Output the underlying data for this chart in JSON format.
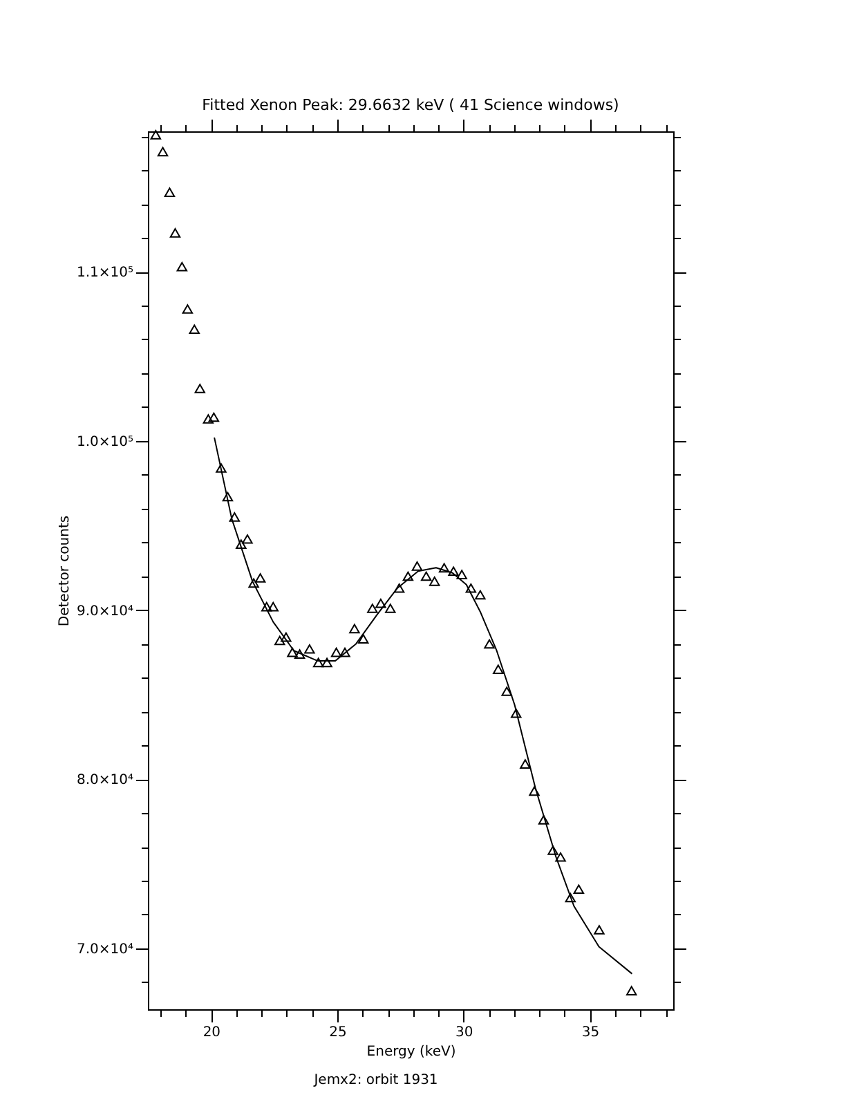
{
  "chart_data": {
    "type": "scatter",
    "title": "Fitted Xenon Peak:       29.6632 keV (      41 Science windows)",
    "xlabel": "Energy (keV)",
    "ylabel": "Detector counts",
    "annotations": [
      "Jemx2: orbit 1931"
    ],
    "grid": false,
    "xlim": [
      17.5,
      38.3
    ],
    "ylim": [
      66400,
      118300
    ],
    "xticks": [
      {
        "value": 18,
        "label": null
      },
      {
        "value": 19,
        "label": null
      },
      20,
      {
        "value": 21,
        "label": null
      },
      {
        "value": 22,
        "label": null
      },
      {
        "value": 23,
        "label": null
      },
      {
        "value": 24,
        "label": null
      },
      25,
      {
        "value": 26,
        "label": null
      },
      {
        "value": 27,
        "label": null
      },
      {
        "value": 28,
        "label": null
      },
      {
        "value": 29,
        "label": null
      },
      30,
      {
        "value": 31,
        "label": null
      },
      {
        "value": 32,
        "label": null
      },
      {
        "value": 33,
        "label": null
      },
      {
        "value": 34,
        "label": null
      },
      35,
      {
        "value": 36,
        "label": null
      },
      {
        "value": 37,
        "label": null
      },
      {
        "value": 38,
        "label": null
      }
    ],
    "yticks": [
      {
        "value": 68000,
        "label": null
      },
      {
        "value": 70000,
        "label": "7.0×10⁴"
      },
      {
        "value": 72000,
        "label": null
      },
      {
        "value": 74000,
        "label": null
      },
      {
        "value": 76000,
        "label": null
      },
      {
        "value": 78000,
        "label": null
      },
      {
        "value": 80000,
        "label": "8.0×10⁴"
      },
      {
        "value": 82000,
        "label": null
      },
      {
        "value": 84000,
        "label": null
      },
      {
        "value": 86000,
        "label": null
      },
      {
        "value": 88000,
        "label": null
      },
      {
        "value": 90000,
        "label": "9.0×10⁴"
      },
      {
        "value": 92000,
        "label": null
      },
      {
        "value": 94000,
        "label": null
      },
      {
        "value": 96000,
        "label": null
      },
      {
        "value": 98000,
        "label": null
      },
      {
        "value": 100000,
        "label": "1.0×10⁵"
      },
      {
        "value": 102000,
        "label": null
      },
      {
        "value": 104000,
        "label": null
      },
      {
        "value": 106000,
        "label": null
      },
      {
        "value": 108000,
        "label": null
      },
      {
        "value": 110000,
        "label": "1.1×10⁵"
      },
      {
        "value": 112000,
        "label": null
      },
      {
        "value": 114000,
        "label": null
      },
      {
        "value": 116000,
        "label": null
      },
      {
        "value": 118000,
        "label": null
      }
    ],
    "series": [
      {
        "marker": "triangle",
        "color": "#000000",
        "x": [
          17.81,
          18.09,
          18.36,
          18.58,
          18.85,
          19.07,
          19.34,
          19.56,
          19.89,
          20.11,
          20.4,
          20.66,
          20.93,
          21.19,
          21.44,
          21.69,
          21.95,
          22.2,
          22.46,
          22.72,
          22.97,
          23.22,
          23.51,
          23.9,
          24.25,
          24.59,
          24.96,
          25.3,
          25.68,
          26.03,
          26.39,
          26.72,
          27.1,
          27.45,
          27.8,
          28.16,
          28.52,
          28.85,
          29.23,
          29.6,
          29.93,
          30.29,
          30.66,
          31.02,
          31.37,
          31.71,
          32.08,
          32.44,
          32.8,
          33.17,
          33.54,
          33.84,
          34.23,
          34.56,
          35.37,
          36.65
        ],
        "values": [
          118100,
          117100,
          114700,
          112300,
          110300,
          107800,
          106600,
          103100,
          101300,
          101400,
          98400,
          96700,
          95500,
          93900,
          94200,
          91600,
          91900,
          90200,
          90200,
          88200,
          88400,
          87500,
          87400,
          87700,
          86900,
          86900,
          87500,
          87500,
          88900,
          88300,
          90100,
          90400,
          90100,
          91300,
          92000,
          92600,
          92000,
          91700,
          92500,
          92300,
          92100,
          91300,
          90900,
          88000,
          86500,
          85200,
          83900,
          80900,
          79300,
          77600,
          75800,
          75400,
          73000,
          73500,
          71100,
          67500
        ]
      },
      {
        "type": "line",
        "marker": "none",
        "color": "#000000",
        "line_style": "solid",
        "x": [
          20.13,
          20.82,
          21.64,
          22.46,
          23.28,
          24.21,
          24.92,
          25.74,
          26.56,
          27.38,
          28.2,
          28.91,
          29.56,
          30.11,
          30.66,
          31.31,
          32.02,
          32.84,
          33.66,
          34.37,
          35.36,
          36.67
        ],
        "values": [
          100200,
          95400,
          91700,
          89300,
          87600,
          87000,
          87000,
          88000,
          89700,
          91300,
          92300,
          92500,
          92200,
          91500,
          89900,
          87600,
          84400,
          79500,
          75400,
          72500,
          70100,
          68500
        ]
      }
    ]
  }
}
